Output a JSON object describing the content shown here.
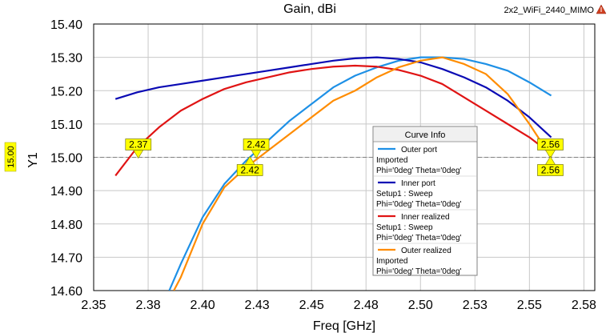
{
  "window_name": "2x2_WiFi_2440_MIMO",
  "chart_data": {
    "type": "line",
    "title": "Gain, dBi",
    "xlabel": "Freq [GHz]",
    "ylabel": "Y1",
    "xlim": [
      2.35,
      2.58
    ],
    "ylim": [
      14.6,
      15.4
    ],
    "x_ticks": [
      "2.35",
      "2.38",
      "2.40",
      "2.43",
      "2.45",
      "2.48",
      "2.50",
      "2.53",
      "2.55",
      "2.58"
    ],
    "x_tick_values": [
      2.35,
      2.375,
      2.4,
      2.425,
      2.45,
      2.475,
      2.5,
      2.525,
      2.55,
      2.575
    ],
    "y_ticks": [
      "14.60",
      "14.70",
      "14.80",
      "14.90",
      "15.00",
      "15.10",
      "15.20",
      "15.30",
      "15.40"
    ],
    "y_tick_values": [
      14.6,
      14.7,
      14.8,
      14.9,
      15.0,
      15.1,
      15.2,
      15.3,
      15.4
    ],
    "grid": true,
    "reference_line": {
      "y": 15.0,
      "label": "15.00",
      "color": "#ffff00"
    },
    "legend": {
      "title": "Curve Info",
      "position": "center-right",
      "entries": [
        {
          "name": "Outer port",
          "lines": [
            "Imported",
            "Phi='0deg' Theta='0deg'"
          ],
          "color": "#1e90e6"
        },
        {
          "name": "Inner port",
          "lines": [
            "Setup1 : Sweep",
            "Phi='0deg' Theta='0deg'"
          ],
          "color": "#0a0ab4"
        },
        {
          "name": "Inner realized",
          "lines": [
            "Setup1 : Sweep",
            "Phi='0deg' Theta='0deg'"
          ],
          "color": "#e01414"
        },
        {
          "name": "Outer realized",
          "lines": [
            "Imported",
            "Phi='0deg' Theta='0deg'"
          ],
          "color": "#ff8c00"
        }
      ]
    },
    "series": [
      {
        "name": "Outer port",
        "color": "#1e90e6",
        "x": [
          2.3847,
          2.39,
          2.4,
          2.41,
          2.42,
          2.43,
          2.44,
          2.45,
          2.46,
          2.47,
          2.48,
          2.49,
          2.5,
          2.51,
          2.52,
          2.53,
          2.54,
          2.55,
          2.56
        ],
        "y": [
          14.6,
          14.68,
          14.82,
          14.92,
          14.99,
          15.05,
          15.11,
          15.16,
          15.21,
          15.245,
          15.27,
          15.29,
          15.3,
          15.3,
          15.295,
          15.28,
          15.26,
          15.225,
          15.185
        ]
      },
      {
        "name": "Inner port",
        "color": "#0a0ab4",
        "x": [
          2.36,
          2.37,
          2.38,
          2.39,
          2.4,
          2.41,
          2.42,
          2.43,
          2.44,
          2.45,
          2.46,
          2.47,
          2.48,
          2.49,
          2.5,
          2.51,
          2.52,
          2.53,
          2.54,
          2.55,
          2.56
        ],
        "y": [
          15.175,
          15.195,
          15.21,
          15.22,
          15.23,
          15.24,
          15.25,
          15.26,
          15.27,
          15.28,
          15.29,
          15.297,
          15.3,
          15.295,
          15.285,
          15.265,
          15.24,
          15.21,
          15.17,
          15.12,
          15.06
        ]
      },
      {
        "name": "Inner realized",
        "color": "#e01414",
        "x": [
          2.36,
          2.37,
          2.38,
          2.39,
          2.4,
          2.41,
          2.42,
          2.43,
          2.44,
          2.45,
          2.46,
          2.47,
          2.48,
          2.49,
          2.5,
          2.51,
          2.52,
          2.53,
          2.54,
          2.55,
          2.56
        ],
        "y": [
          14.945,
          15.03,
          15.09,
          15.14,
          15.175,
          15.205,
          15.225,
          15.24,
          15.255,
          15.265,
          15.272,
          15.275,
          15.272,
          15.262,
          15.245,
          15.22,
          15.18,
          15.14,
          15.1,
          15.06,
          15.01
        ]
      },
      {
        "name": "Outer realized",
        "color": "#ff8c00",
        "x": [
          2.3868,
          2.39,
          2.4,
          2.41,
          2.42,
          2.43,
          2.44,
          2.45,
          2.46,
          2.47,
          2.48,
          2.49,
          2.5,
          2.51,
          2.52,
          2.53,
          2.54,
          2.55,
          2.56
        ],
        "y": [
          14.6,
          14.64,
          14.8,
          14.91,
          14.97,
          15.02,
          15.07,
          15.12,
          15.17,
          15.2,
          15.24,
          15.27,
          15.29,
          15.3,
          15.28,
          15.25,
          15.19,
          15.1,
          15.0
        ]
      }
    ],
    "markers": [
      {
        "x": 2.3705,
        "y": 15.0,
        "label": "2.37",
        "label_side": "above"
      },
      {
        "x": 2.4246,
        "y": 15.0,
        "label": "2.42",
        "label_side": "above"
      },
      {
        "x": 2.4217,
        "y": 15.0,
        "label": "2.42",
        "label_side": "below"
      },
      {
        "x": 2.5596,
        "y": 15.0,
        "label": "2.56",
        "label_side": "above"
      },
      {
        "x": 2.5596,
        "y": 15.0,
        "label": "2.56",
        "label_side": "below"
      }
    ]
  }
}
